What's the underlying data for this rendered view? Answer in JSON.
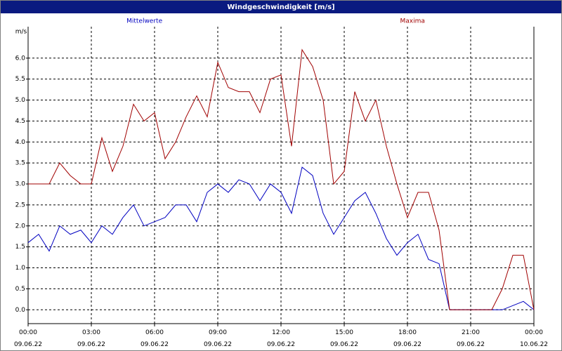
{
  "chart_data": {
    "type": "line",
    "title": "Windgeschwindigkeit [m/s]",
    "y_label": "m/s",
    "x": [
      0,
      0.5,
      1,
      1.5,
      2,
      2.5,
      3,
      3.5,
      4,
      4.5,
      5,
      5.5,
      6,
      6.5,
      7,
      7.5,
      8,
      8.5,
      9,
      9.5,
      10,
      10.5,
      11,
      11.5,
      12,
      12.5,
      13,
      13.5,
      14,
      14.5,
      15,
      15.5,
      16,
      16.5,
      17,
      17.5,
      18,
      18.5,
      19,
      19.5,
      20,
      20.5,
      21,
      21.5,
      22,
      22.5,
      23,
      23.5,
      24
    ],
    "series": [
      {
        "name": "Mittelwerte",
        "color": "#0000c0",
        "values": [
          1.6,
          1.8,
          1.4,
          2.0,
          1.8,
          1.9,
          1.6,
          2.0,
          1.8,
          2.2,
          2.5,
          2.0,
          2.1,
          2.2,
          2.5,
          2.5,
          2.1,
          2.8,
          3.0,
          2.8,
          3.1,
          3.0,
          2.6,
          3.0,
          2.8,
          2.3,
          3.4,
          3.2,
          2.3,
          1.8,
          2.2,
          2.6,
          2.8,
          2.3,
          1.7,
          1.3,
          1.6,
          1.8,
          1.2,
          1.1,
          0.0,
          0.0,
          0.0,
          0.0,
          0.0,
          0.0,
          0.1,
          0.2,
          0.0
        ]
      },
      {
        "name": "Maxima",
        "color": "#a00000",
        "values": [
          3.0,
          3.0,
          3.0,
          3.5,
          3.2,
          3.0,
          3.0,
          4.1,
          3.3,
          3.9,
          4.9,
          4.5,
          4.7,
          3.6,
          4.0,
          4.6,
          5.1,
          4.6,
          5.9,
          5.3,
          5.2,
          5.2,
          4.7,
          5.5,
          5.6,
          3.9,
          6.2,
          5.8,
          5.0,
          3.0,
          3.3,
          5.2,
          4.5,
          5.0,
          3.9,
          3.0,
          2.2,
          2.8,
          2.8,
          1.9,
          0.0,
          0.0,
          0.0,
          0.0,
          0.0,
          0.5,
          1.3,
          1.3,
          0.0
        ]
      }
    ],
    "xlim": [
      0,
      24
    ],
    "xticks": [
      {
        "value": 0,
        "label": "00:00\n09.06.22"
      },
      {
        "value": 3,
        "label": "03:00\n09.06.22"
      },
      {
        "value": 6,
        "label": "06:00\n09.06.22"
      },
      {
        "value": 9,
        "label": "09:00\n09.06.22"
      },
      {
        "value": 12,
        "label": "12:00\n09.06.22"
      },
      {
        "value": 15,
        "label": "15:00\n09.06.22"
      },
      {
        "value": 18,
        "label": "18:00\n09.06.22"
      },
      {
        "value": 21,
        "label": "21:00\n09.06.22"
      },
      {
        "value": 24,
        "label": "00:00\n10.06.22"
      }
    ],
    "ylim": [
      -0.33,
      6.75
    ],
    "yticks": [
      {
        "value": 0,
        "label": "0.0"
      },
      0.5,
      {
        "value": 1,
        "label": "1.0"
      },
      1.5,
      {
        "value": 2,
        "label": "2.0"
      },
      2.5,
      {
        "value": 3,
        "label": "3.0"
      },
      3.5,
      {
        "value": 4,
        "label": "4.0"
      },
      4.5,
      {
        "value": 5,
        "label": "5.0"
      },
      5.5,
      {
        "value": 6,
        "label": "6.0"
      }
    ],
    "grid": true
  }
}
